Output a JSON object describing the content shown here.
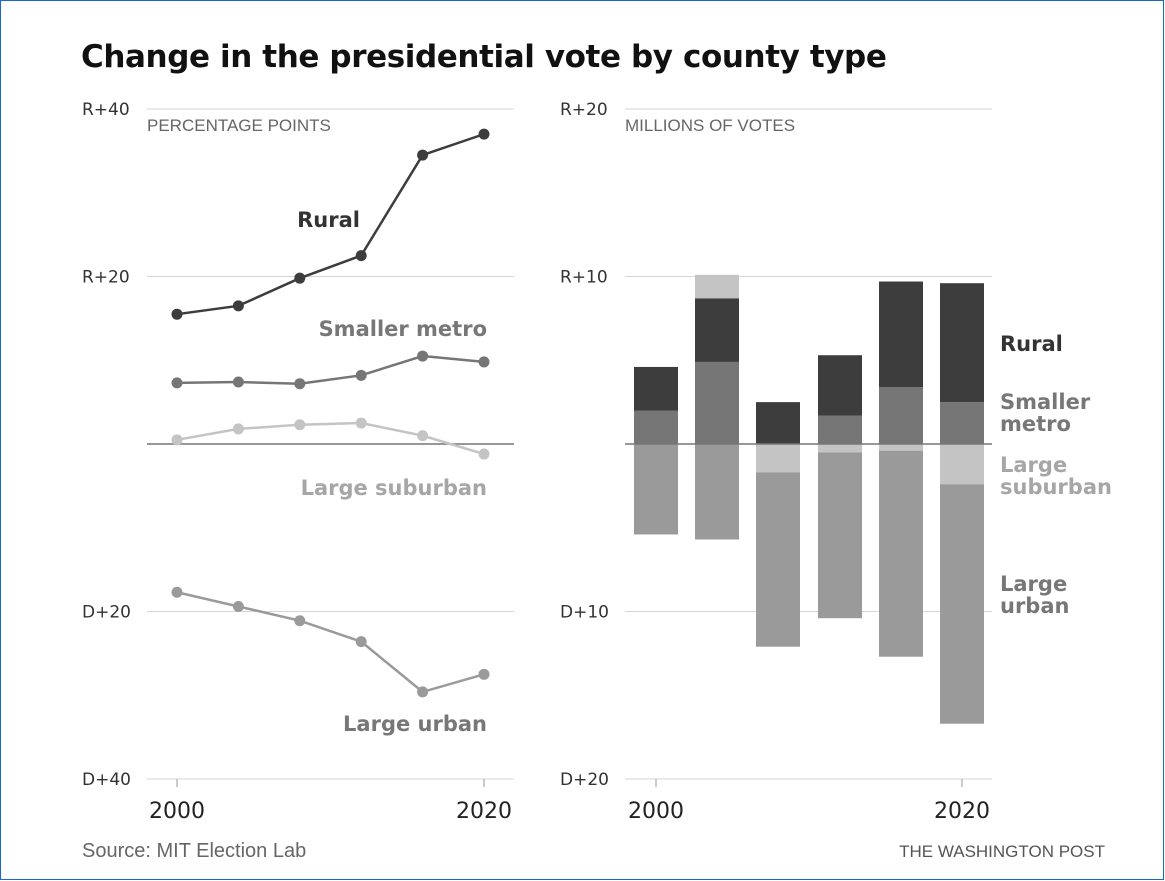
{
  "title": "Change in the presidential vote by county type",
  "source": "Source: MIT Election Lab",
  "credit": "THE WASHINGTON POST",
  "colors": {
    "rural": "#3d3d3d",
    "smaller_metro": "#767676",
    "large_suburban": "#c4c4c4",
    "large_urban": "#9a9a9a",
    "grid": "#d6d6d6",
    "baseline": "#777777"
  },
  "chart_data": [
    {
      "type": "line",
      "unit_label": "PERCENTAGE POINTS",
      "x": [
        2000,
        2004,
        2008,
        2012,
        2016,
        2020
      ],
      "ylim": [
        -40,
        40
      ],
      "yticks": [
        {
          "value": 40,
          "label": "R+40"
        },
        {
          "value": 20,
          "label": "R+20"
        },
        {
          "value": -20,
          "label": "D+20"
        },
        {
          "value": -40,
          "label": "D+40"
        }
      ],
      "xticks": [
        {
          "value": 2000,
          "label": "2000"
        },
        {
          "value": 2020,
          "label": "2020"
        }
      ],
      "series": [
        {
          "key": "rural",
          "name": "Rural",
          "values": [
            15.5,
            16.5,
            19.8,
            22.5,
            34.5,
            37
          ]
        },
        {
          "key": "smaller_metro",
          "name": "Smaller metro",
          "values": [
            7.3,
            7.4,
            7.2,
            8.2,
            10.5,
            9.8
          ]
        },
        {
          "key": "large_suburban",
          "name": "Large suburban",
          "values": [
            0.5,
            1.8,
            2.3,
            2.5,
            1.0,
            -1.2
          ]
        },
        {
          "key": "large_urban",
          "name": "Large urban",
          "values": [
            -17.7,
            -19.4,
            -21.1,
            -23.6,
            -29.6,
            -27.5
          ]
        }
      ]
    },
    {
      "type": "bar",
      "stacked": true,
      "unit_label": "MILLIONS OF VOTES",
      "categories": [
        2000,
        2004,
        2008,
        2012,
        2016,
        2020
      ],
      "ylim": [
        -20,
        20
      ],
      "yticks": [
        {
          "value": 20,
          "label": "R+20"
        },
        {
          "value": 10,
          "label": "R+10"
        },
        {
          "value": -10,
          "label": "D+10"
        },
        {
          "value": -20,
          "label": "D+20"
        }
      ],
      "xticks": [
        {
          "value": 2000,
          "label": "2000"
        },
        {
          "value": 2020,
          "label": "2020"
        }
      ],
      "series": [
        {
          "key": "smaller_metro",
          "name": "Smaller metro",
          "lines": [
            "Smaller",
            "metro"
          ],
          "values": [
            2.0,
            4.9,
            0,
            1.7,
            3.4,
            2.5
          ]
        },
        {
          "key": "rural",
          "name": "Rural",
          "lines": [
            "Rural"
          ],
          "values": [
            2.6,
            3.8,
            2.5,
            3.6,
            6.3,
            7.1
          ]
        },
        {
          "key": "large_suburban",
          "name": "Large suburban",
          "lines": [
            "Large",
            "suburban"
          ],
          "values": [
            0,
            1.4,
            -1.7,
            -0.5,
            -0.4,
            -2.4
          ]
        },
        {
          "key": "large_urban",
          "name": "Large urban",
          "lines": [
            "Large",
            "urban"
          ],
          "values": [
            -5.4,
            -5.7,
            -10.4,
            -9.9,
            -12.3,
            -14.3
          ]
        }
      ]
    }
  ]
}
